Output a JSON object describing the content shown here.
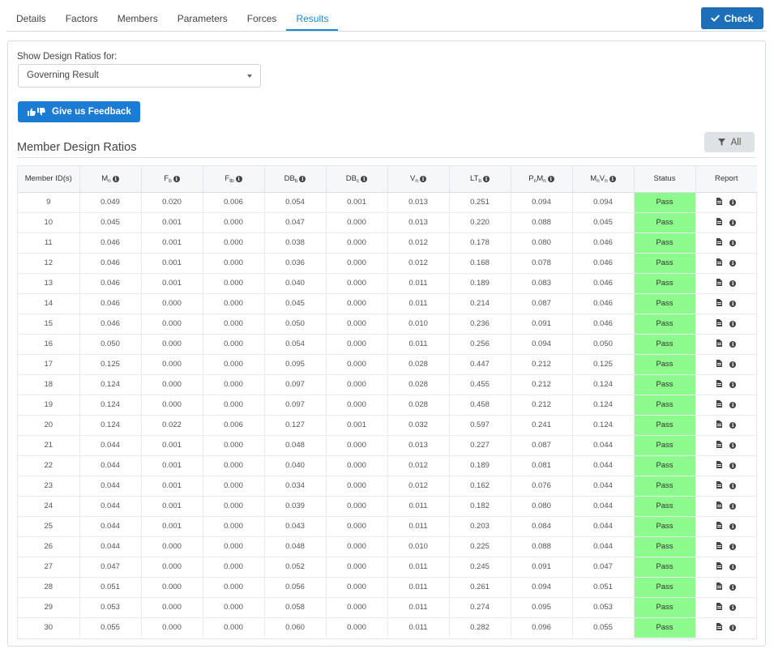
{
  "tabs": [
    {
      "label": "Details",
      "active": false
    },
    {
      "label": "Factors",
      "active": false
    },
    {
      "label": "Members",
      "active": false
    },
    {
      "label": "Parameters",
      "active": false
    },
    {
      "label": "Forces",
      "active": false
    },
    {
      "label": "Results",
      "active": true
    }
  ],
  "check_button": {
    "label": "Check",
    "icon": "checkmark-icon"
  },
  "filter": {
    "label": "Show Design Ratios for:",
    "selected": "Governing Result"
  },
  "feedback_button": {
    "label": "Give us Feedback",
    "icon": "thumbs-up-down-icon"
  },
  "section_title": "Member Design Ratios",
  "all_button": {
    "label": "All",
    "icon": "filter-icon"
  },
  "table": {
    "columns": [
      {
        "main": "Member ID(s)",
        "sub": "",
        "info": false
      },
      {
        "main": "M",
        "sub": "n",
        "info": true
      },
      {
        "main": "F",
        "sub": "b",
        "info": true
      },
      {
        "main": "F",
        "sub": "tb",
        "info": true
      },
      {
        "main": "DB",
        "sub": "b",
        "info": true
      },
      {
        "main": "DB",
        "sub": "c",
        "info": true
      },
      {
        "main": "V",
        "sub": "n",
        "info": true
      },
      {
        "main": "LT",
        "sub": "b",
        "info": true
      },
      {
        "main": "P",
        "sub": "n",
        "main2": "M",
        "sub2": "n",
        "info": true
      },
      {
        "main": "M",
        "sub": "n",
        "main2": "V",
        "sub2": "n",
        "info": true
      },
      {
        "main": "Status",
        "sub": "",
        "info": false
      },
      {
        "main": "Report",
        "sub": "",
        "info": false
      }
    ],
    "rows": [
      [
        "9",
        "0.049",
        "0.020",
        "0.006",
        "0.054",
        "0.001",
        "0.013",
        "0.251",
        "0.094",
        "0.094",
        "Pass"
      ],
      [
        "10",
        "0.045",
        "0.001",
        "0.000",
        "0.047",
        "0.000",
        "0.013",
        "0.220",
        "0.088",
        "0.045",
        "Pass"
      ],
      [
        "11",
        "0.046",
        "0.001",
        "0.000",
        "0.038",
        "0.000",
        "0.012",
        "0.178",
        "0.080",
        "0.046",
        "Pass"
      ],
      [
        "12",
        "0.046",
        "0.001",
        "0.000",
        "0.036",
        "0.000",
        "0.012",
        "0.168",
        "0.078",
        "0.046",
        "Pass"
      ],
      [
        "13",
        "0.046",
        "0.001",
        "0.000",
        "0.040",
        "0.000",
        "0.011",
        "0.189",
        "0.083",
        "0.046",
        "Pass"
      ],
      [
        "14",
        "0.046",
        "0.000",
        "0.000",
        "0.045",
        "0.000",
        "0.011",
        "0.214",
        "0.087",
        "0.046",
        "Pass"
      ],
      [
        "15",
        "0.046",
        "0.000",
        "0.000",
        "0.050",
        "0.000",
        "0.010",
        "0.236",
        "0.091",
        "0.046",
        "Pass"
      ],
      [
        "16",
        "0.050",
        "0.000",
        "0.000",
        "0.054",
        "0.000",
        "0.011",
        "0.256",
        "0.094",
        "0.050",
        "Pass"
      ],
      [
        "17",
        "0.125",
        "0.000",
        "0.000",
        "0.095",
        "0.000",
        "0.028",
        "0.447",
        "0.212",
        "0.125",
        "Pass"
      ],
      [
        "18",
        "0.124",
        "0.000",
        "0.000",
        "0.097",
        "0.000",
        "0.028",
        "0.455",
        "0.212",
        "0.124",
        "Pass"
      ],
      [
        "19",
        "0.124",
        "0.000",
        "0.000",
        "0.097",
        "0.000",
        "0.028",
        "0.458",
        "0.212",
        "0.124",
        "Pass"
      ],
      [
        "20",
        "0.124",
        "0.022",
        "0.006",
        "0.127",
        "0.001",
        "0.032",
        "0.597",
        "0.241",
        "0.124",
        "Pass"
      ],
      [
        "21",
        "0.044",
        "0.001",
        "0.000",
        "0.048",
        "0.000",
        "0.013",
        "0.227",
        "0.087",
        "0.044",
        "Pass"
      ],
      [
        "22",
        "0.044",
        "0.001",
        "0.000",
        "0.040",
        "0.000",
        "0.012",
        "0.189",
        "0.081",
        "0.044",
        "Pass"
      ],
      [
        "23",
        "0.044",
        "0.001",
        "0.000",
        "0.034",
        "0.000",
        "0.012",
        "0.162",
        "0.076",
        "0.044",
        "Pass"
      ],
      [
        "24",
        "0.044",
        "0.001",
        "0.000",
        "0.039",
        "0.000",
        "0.011",
        "0.182",
        "0.080",
        "0.044",
        "Pass"
      ],
      [
        "25",
        "0.044",
        "0.001",
        "0.000",
        "0.043",
        "0.000",
        "0.011",
        "0.203",
        "0.084",
        "0.044",
        "Pass"
      ],
      [
        "26",
        "0.044",
        "0.000",
        "0.000",
        "0.048",
        "0.000",
        "0.010",
        "0.225",
        "0.088",
        "0.044",
        "Pass"
      ],
      [
        "27",
        "0.047",
        "0.000",
        "0.000",
        "0.052",
        "0.000",
        "0.011",
        "0.245",
        "0.091",
        "0.047",
        "Pass"
      ],
      [
        "28",
        "0.051",
        "0.000",
        "0.000",
        "0.056",
        "0.000",
        "0.011",
        "0.261",
        "0.094",
        "0.051",
        "Pass"
      ],
      [
        "29",
        "0.053",
        "0.000",
        "0.000",
        "0.058",
        "0.000",
        "0.011",
        "0.274",
        "0.095",
        "0.053",
        "Pass"
      ],
      [
        "30",
        "0.055",
        "0.000",
        "0.000",
        "0.060",
        "0.000",
        "0.011",
        "0.282",
        "0.096",
        "0.055",
        "Pass"
      ]
    ],
    "status_pass_color": "#8cfa8c",
    "report_icons": [
      "document-icon",
      "info-icon"
    ]
  },
  "colors": {
    "accent": "#1a8ad6",
    "primary_button": "#1c6fb8",
    "feedback_button": "#1c7bd2"
  }
}
